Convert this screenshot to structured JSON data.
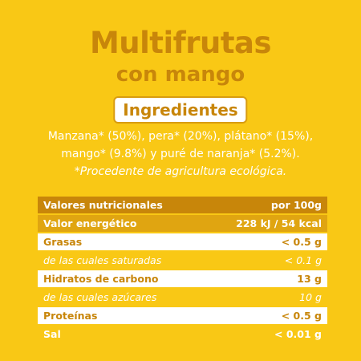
{
  "product": {
    "title_line1": "Multifrutas",
    "title_line2": "con mango"
  },
  "ingredients": {
    "heading": "Ingredientes",
    "line1": "Manzana* (50%), pera* (20%), plátano* (15%),",
    "line2": "mango* (9.8%) y puré de naranja* (5.2%).",
    "note": "*Procedente de agricultura ecológica."
  },
  "nutrition": {
    "header_label": "Valores nutricionales",
    "header_value": "por 100g",
    "rows": [
      {
        "label": "Valor energético",
        "value": "228 kJ / 54 kcal"
      },
      {
        "label": "Grasas",
        "value": "< 0.5 g"
      },
      {
        "label": "de las cuales saturadas",
        "value": "< 0.1 g"
      },
      {
        "label": "Hidratos de carbono",
        "value": "13 g"
      },
      {
        "label": "de las cuales azúcares",
        "value": "10 g"
      },
      {
        "label": "Proteínas",
        "value": "< 0.5 g"
      },
      {
        "label": "Sal",
        "value": "< 0.01 g"
      }
    ]
  },
  "colors": {
    "background": "#F9C815",
    "accent": "#C8860A",
    "band": "#E0A511",
    "text_light": "#FFFFFF"
  }
}
